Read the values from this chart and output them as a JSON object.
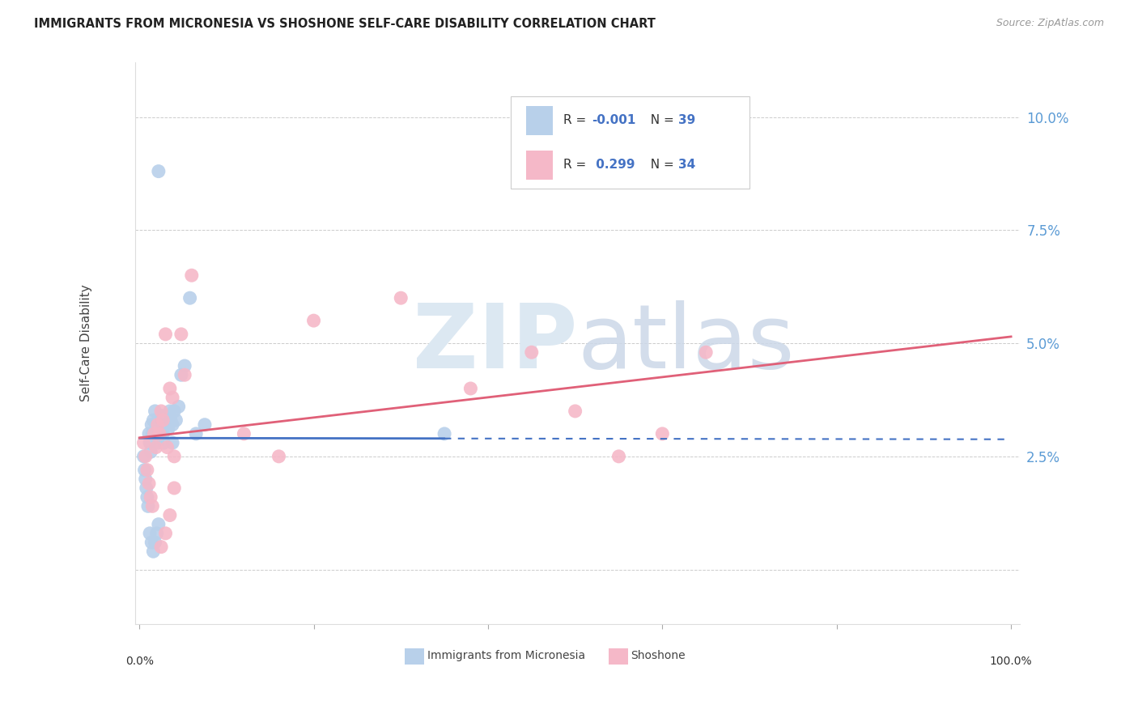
{
  "title": "IMMIGRANTS FROM MICRONESIA VS SHOSHONE SELF-CARE DISABILITY CORRELATION CHART",
  "source": "Source: ZipAtlas.com",
  "ylabel": "Self-Care Disability",
  "ytick_vals": [
    0.0,
    0.025,
    0.05,
    0.075,
    0.1
  ],
  "ytick_labels": [
    "",
    "2.5%",
    "5.0%",
    "7.5%",
    "10.0%"
  ],
  "xlim": [
    -0.005,
    1.01
  ],
  "ylim": [
    -0.012,
    0.112
  ],
  "color_blue": "#b8d0ea",
  "color_pink": "#f5b8c8",
  "color_line_blue": "#4472c4",
  "color_line_pink": "#e06078",
  "color_ytick": "#5b9bd5",
  "blue_R": -0.001,
  "pink_R": 0.299,
  "blue_N": 39,
  "pink_N": 34,
  "blue_x": [
    0.005,
    0.006,
    0.007,
    0.008,
    0.009,
    0.01,
    0.011,
    0.012,
    0.013,
    0.014,
    0.015,
    0.016,
    0.018,
    0.019,
    0.02,
    0.021,
    0.022,
    0.023,
    0.025,
    0.026,
    0.027,
    0.028,
    0.03,
    0.032,
    0.033,
    0.035,
    0.036,
    0.038,
    0.04,
    0.042,
    0.045,
    0.048,
    0.052,
    0.058,
    0.065,
    0.075,
    0.022,
    0.35,
    0.038
  ],
  "blue_y": [
    0.025,
    0.022,
    0.02,
    0.018,
    0.016,
    0.014,
    0.03,
    0.028,
    0.026,
    0.032,
    0.03,
    0.033,
    0.035,
    0.032,
    0.03,
    0.028,
    0.033,
    0.031,
    0.034,
    0.032,
    0.03,
    0.028,
    0.034,
    0.033,
    0.031,
    0.035,
    0.033,
    0.032,
    0.035,
    0.033,
    0.036,
    0.043,
    0.045,
    0.06,
    0.03,
    0.032,
    0.088,
    0.03,
    0.028
  ],
  "blue_x2": [
    0.012,
    0.014,
    0.016,
    0.018,
    0.02,
    0.022
  ],
  "blue_y2": [
    0.008,
    0.006,
    0.004,
    0.006,
    0.008,
    0.01
  ],
  "pink_x": [
    0.005,
    0.007,
    0.009,
    0.011,
    0.013,
    0.015,
    0.017,
    0.019,
    0.021,
    0.023,
    0.025,
    0.027,
    0.03,
    0.032,
    0.035,
    0.038,
    0.04,
    0.048,
    0.052,
    0.06,
    0.2,
    0.3,
    0.38,
    0.45,
    0.5,
    0.55,
    0.6,
    0.65,
    0.12,
    0.16,
    0.025,
    0.03,
    0.035,
    0.04
  ],
  "pink_y": [
    0.028,
    0.025,
    0.022,
    0.019,
    0.016,
    0.014,
    0.03,
    0.027,
    0.032,
    0.03,
    0.035,
    0.033,
    0.052,
    0.027,
    0.04,
    0.038,
    0.025,
    0.052,
    0.043,
    0.065,
    0.055,
    0.06,
    0.04,
    0.048,
    0.035,
    0.025,
    0.03,
    0.048,
    0.03,
    0.025,
    0.005,
    0.008,
    0.012,
    0.018
  ]
}
